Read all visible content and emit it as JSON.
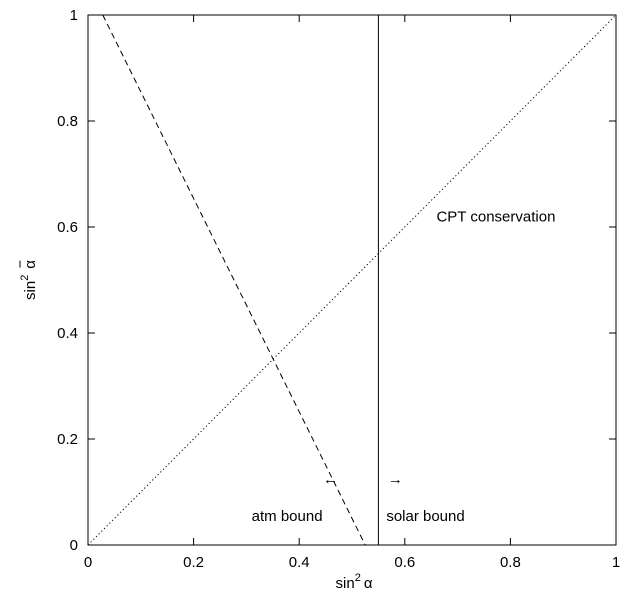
{
  "chart_data": {
    "type": "line",
    "title": "",
    "xlim": [
      0,
      1
    ],
    "ylim": [
      0,
      1
    ],
    "grid": false,
    "legend": "none",
    "xlabel": {
      "base": "sin",
      "sup": "2",
      "symbol": "α"
    },
    "ylabel": {
      "base": "sin",
      "sup": "2",
      "symbol": "α",
      "overbar": true
    },
    "xticks": [
      {
        "value": 0,
        "label": "0"
      },
      {
        "value": 0.2,
        "label": "0.2"
      },
      {
        "value": 0.4,
        "label": "0.4"
      },
      {
        "value": 0.6,
        "label": "0.6"
      },
      {
        "value": 0.8,
        "label": "0.8"
      },
      {
        "value": 1,
        "label": "1"
      }
    ],
    "yticks": [
      {
        "value": 0,
        "label": "0"
      },
      {
        "value": 0.2,
        "label": "0.2"
      },
      {
        "value": 0.4,
        "label": "0.4"
      },
      {
        "value": 0.6,
        "label": "0.6"
      },
      {
        "value": 0.8,
        "label": "0.8"
      },
      {
        "value": 1,
        "label": "1"
      }
    ],
    "series": [
      {
        "style": "dashed",
        "points": [
          [
            0.028,
            1.0
          ],
          [
            0.525,
            0.0
          ]
        ]
      },
      {
        "style": "solid",
        "points": [
          [
            0.55,
            0.0
          ],
          [
            0.55,
            1.0
          ]
        ]
      },
      {
        "style": "dotted",
        "points": [
          [
            0.0,
            0.0
          ],
          [
            1.0,
            1.0
          ]
        ]
      }
    ],
    "annotations": [
      {
        "id": "cpt",
        "text": "CPT conservation",
        "x": 0.66,
        "y": 0.61
      },
      {
        "id": "atm-arrow",
        "text": "←",
        "x": 0.445,
        "y": 0.115
      },
      {
        "id": "atm",
        "text": "atm bound",
        "x": 0.31,
        "y": 0.045
      },
      {
        "id": "solar-arrow",
        "text": "→",
        "x": 0.568,
        "y": 0.115
      },
      {
        "id": "solar",
        "text": "solar bound",
        "x": 0.565,
        "y": 0.045
      }
    ]
  }
}
